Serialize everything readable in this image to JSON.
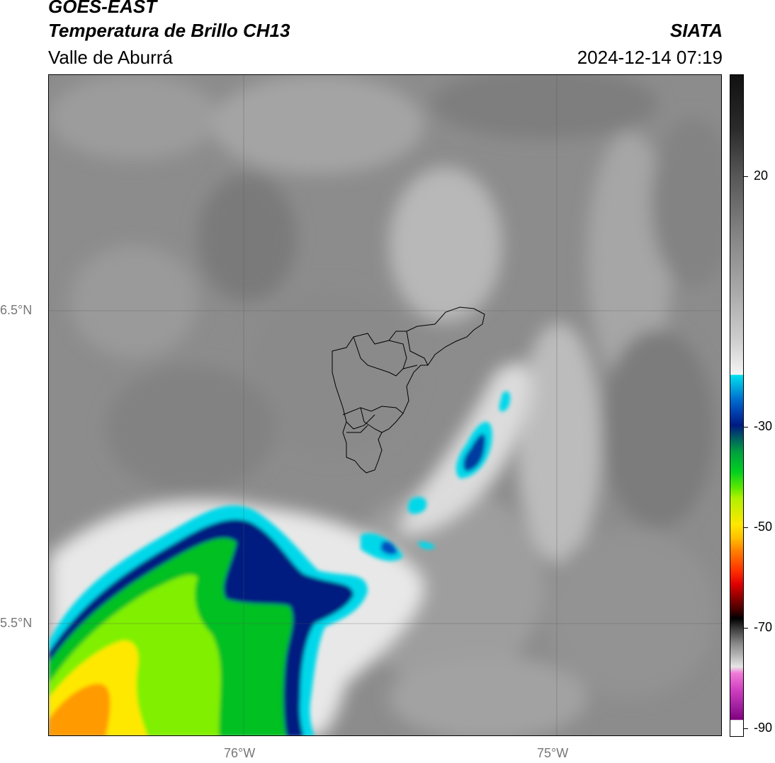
{
  "header": {
    "satellite": "GOES-EAST",
    "product": "Temperatura de Brillo CH13",
    "region": "Valle de Aburrá",
    "org": "SIATA",
    "datetime": "2024-12-14 07:19"
  },
  "map": {
    "lat_labels": [
      "6.5°N",
      "5.5°N"
    ],
    "lon_labels": [
      "76°W",
      "75°W"
    ]
  },
  "colorbar": {
    "ticks": [
      "20",
      "-30",
      "-50",
      "-70",
      "-90"
    ],
    "colors": {
      "black_top": "#1a1a1a",
      "gray_mid": "#9a9a9a",
      "white": "#f2f2f2",
      "cyan": "#00d8ea",
      "blue": "#0050c0",
      "dark_blue": "#001a80",
      "green": "#00c020",
      "lime": "#80f000",
      "yellow": "#ffe800",
      "orange": "#ff8c00",
      "red": "#f01010",
      "dark_red": "#600000",
      "magenta": "#e040c0",
      "purple": "#800080"
    }
  }
}
